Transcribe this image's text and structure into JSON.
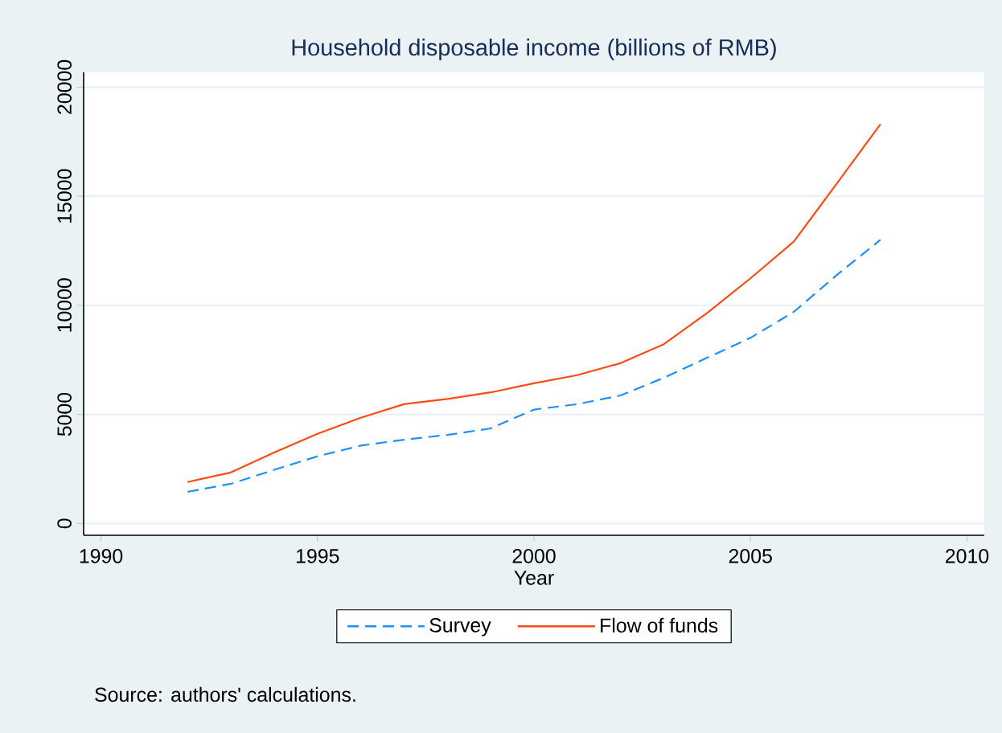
{
  "chart_data": {
    "type": "line",
    "title": "Household disposable income (billions of RMB)",
    "xlabel": "Year",
    "x": [
      1992,
      1993,
      1994,
      1995,
      1996,
      1997,
      1998,
      1999,
      2000,
      2001,
      2002,
      2003,
      2004,
      2005,
      2006,
      2007,
      2008
    ],
    "series": [
      {
        "name": "Survey",
        "color": "#1e8fff",
        "line_style": "dashed",
        "values": [
          1450,
          1820,
          2460,
          3080,
          3570,
          3840,
          4060,
          4360,
          5220,
          5470,
          5870,
          6680,
          7600,
          8510,
          9700,
          11400,
          13000
        ]
      },
      {
        "name": "Flow of funds",
        "color": "#ff4a14",
        "line_style": "solid",
        "values": [
          1900,
          2340,
          3250,
          4110,
          4850,
          5470,
          5710,
          6010,
          6430,
          6800,
          7350,
          8220,
          9650,
          11240,
          12920,
          15600,
          18300
        ]
      }
    ],
    "xlim": [
      1989.6,
      2010.4
    ],
    "ylim": [
      -540,
      20680
    ],
    "xticks": [
      1990,
      1995,
      2000,
      2005,
      2010
    ],
    "yticks": [
      0,
      5000,
      10000,
      15000,
      20000
    ],
    "grid": "y",
    "legend": "bottom",
    "annotations": [
      "Source: authors' calculations."
    ]
  }
}
